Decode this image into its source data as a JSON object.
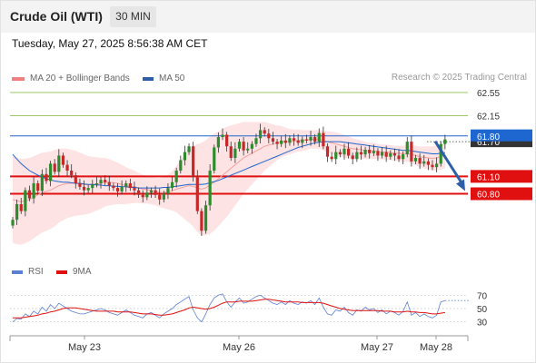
{
  "header": {
    "title": "Crude Oil (WTI)",
    "timeframe": "30 MIN"
  },
  "datetime": "Tuesday, May 27, 2025 8:56:38 AM CET",
  "legend": {
    "bollinger": {
      "label": "MA 20 + Bollinger Bands",
      "color": "#f08080"
    },
    "ma50": {
      "label": "MA 50",
      "color": "#2d5ea8"
    }
  },
  "credit": "Research © 2025 Trading Central",
  "rsi_legend": {
    "rsi": {
      "label": "RSI",
      "color": "#5b7fd1"
    },
    "ma9": {
      "label": "9MA",
      "color": "#e01010"
    }
  },
  "levels": [
    {
      "value": 62.55,
      "label": "62.55",
      "type": "resistance"
    },
    {
      "value": 62.15,
      "label": "62.15",
      "type": "resistance"
    },
    {
      "value": 61.8,
      "label": "61.80",
      "type": "pivot"
    },
    {
      "value": 61.1,
      "label": "61.10",
      "type": "support"
    },
    {
      "value": 60.8,
      "label": "60.80",
      "type": "support"
    }
  ],
  "current_price_tag": "61.70",
  "colors": {
    "resistance": "#8bc34a",
    "pivot": "#1e66d0",
    "support": "#e01010",
    "up": "#2e8b2e",
    "down": "#c62828",
    "arrow": "#2d5ea8"
  },
  "x_labels": [
    "May 23",
    "May 26",
    "May 27",
    "May 28"
  ],
  "rsi_ticks": [
    "70",
    "50",
    "30"
  ],
  "chart_data": {
    "type": "candlestick",
    "y_range": [
      59.6,
      62.8
    ],
    "levels": [
      62.55,
      62.15,
      61.8,
      61.1,
      60.8
    ],
    "close": [
      60.35,
      60.62,
      60.5,
      60.86,
      60.72,
      60.98,
      60.85,
      61.14,
      61.02,
      61.32,
      61.18,
      61.46,
      61.3,
      61.2,
      61.12,
      60.98,
      60.92,
      60.86,
      60.9,
      60.96,
      60.98,
      61.04,
      61.0,
      60.94,
      60.9,
      60.84,
      60.92,
      60.98,
      60.9,
      60.86,
      60.78,
      60.74,
      60.82,
      60.86,
      60.78,
      60.7,
      60.8,
      60.9,
      61.0,
      61.2,
      61.38,
      61.52,
      61.62,
      61.1,
      60.5,
      60.16,
      60.6,
      61.2,
      61.6,
      61.78,
      61.82,
      61.62,
      61.42,
      61.58,
      61.7,
      61.55,
      61.58,
      61.66,
      61.76,
      61.9,
      61.84,
      61.76,
      61.7,
      61.66,
      61.72,
      61.68,
      61.76,
      61.72,
      61.68,
      61.74,
      61.72,
      61.78,
      61.7,
      61.85,
      61.62,
      61.44,
      61.4,
      61.52,
      61.48,
      61.58,
      61.46,
      61.4,
      61.52,
      61.48,
      61.56,
      61.5,
      61.54,
      61.46,
      61.52,
      61.44,
      61.5,
      61.46,
      61.4,
      61.48,
      61.7,
      61.36,
      61.42,
      61.32,
      61.36,
      61.3,
      61.26,
      61.32,
      61.66,
      61.74
    ],
    "ma20": [
      60.7,
      60.68,
      60.66,
      60.68,
      60.7,
      60.74,
      60.78,
      60.82,
      60.84,
      60.86,
      60.9,
      60.94,
      60.96,
      60.98,
      60.98,
      60.98,
      60.97,
      60.96,
      60.95,
      60.96,
      60.97,
      60.98,
      61.0,
      61.0,
      60.99,
      60.98,
      60.96,
      60.94,
      60.93,
      60.92,
      60.9,
      60.88,
      60.87,
      60.86,
      60.84,
      60.82,
      60.82,
      60.83,
      60.85,
      60.88,
      60.9,
      60.92,
      60.94,
      60.93,
      60.9,
      60.88,
      60.9,
      60.95,
      61.0,
      61.06,
      61.12,
      61.18,
      61.24,
      61.3,
      61.36,
      61.42,
      61.46,
      61.5,
      61.54,
      61.58,
      61.62,
      61.64,
      61.66,
      61.68,
      61.7,
      61.7,
      61.7,
      61.71,
      61.72,
      61.72,
      61.73,
      61.74,
      61.74,
      61.74,
      61.72,
      61.7,
      61.68,
      61.66,
      61.64,
      61.62,
      61.6,
      61.58,
      61.57,
      61.56,
      61.55,
      61.54,
      61.54,
      61.53,
      61.52,
      61.52,
      61.51,
      61.5,
      61.5,
      61.49,
      61.5,
      61.48,
      61.46,
      61.44,
      61.43,
      61.42,
      61.41,
      61.42,
      61.44,
      61.46
    ],
    "ma50": [
      61.48,
      61.4,
      61.32,
      61.26,
      61.2,
      61.16,
      61.12,
      61.09,
      61.06,
      61.04,
      61.02,
      61.01,
      61.0,
      61.0,
      60.99,
      60.98,
      60.98,
      60.97,
      60.96,
      60.96,
      60.95,
      60.95,
      60.94,
      60.94,
      60.93,
      60.93,
      60.92,
      60.92,
      60.91,
      60.91,
      60.9,
      60.9,
      60.9,
      60.9,
      60.9,
      60.9,
      60.91,
      60.91,
      60.92,
      60.93,
      60.94,
      60.95,
      60.96,
      60.96,
      60.96,
      60.96,
      60.97,
      60.99,
      61.01,
      61.03,
      61.06,
      61.09,
      61.12,
      61.15,
      61.18,
      61.21,
      61.24,
      61.27,
      61.3,
      61.33,
      61.36,
      61.39,
      61.42,
      61.45,
      61.48,
      61.51,
      61.54,
      61.57,
      61.6,
      61.62,
      61.64,
      61.66,
      61.68,
      61.69,
      61.7,
      61.7,
      61.7,
      61.7,
      61.7,
      61.69,
      61.68,
      61.67,
      61.66,
      61.65,
      61.64,
      61.63,
      61.62,
      61.61,
      61.6,
      61.59,
      61.58,
      61.57,
      61.56,
      61.55,
      61.55,
      61.54,
      61.53,
      61.52,
      61.51,
      61.5,
      61.49,
      61.49,
      61.5,
      61.51
    ],
    "band_width": [
      0.75,
      0.75,
      0.74,
      0.73,
      0.72,
      0.71,
      0.7,
      0.69,
      0.68,
      0.67,
      0.66,
      0.64,
      0.62,
      0.6,
      0.58,
      0.56,
      0.54,
      0.52,
      0.5,
      0.48,
      0.46,
      0.44,
      0.42,
      0.4,
      0.38,
      0.36,
      0.34,
      0.32,
      0.3,
      0.28,
      0.26,
      0.25,
      0.24,
      0.24,
      0.24,
      0.25,
      0.27,
      0.3,
      0.34,
      0.4,
      0.48,
      0.56,
      0.64,
      0.7,
      0.76,
      0.8,
      0.82,
      0.84,
      0.84,
      0.82,
      0.8,
      0.78,
      0.74,
      0.7,
      0.66,
      0.62,
      0.58,
      0.54,
      0.5,
      0.46,
      0.42,
      0.38,
      0.34,
      0.3,
      0.27,
      0.24,
      0.22,
      0.2,
      0.19,
      0.18,
      0.17,
      0.16,
      0.16,
      0.16,
      0.17,
      0.18,
      0.19,
      0.2,
      0.2,
      0.2,
      0.19,
      0.18,
      0.17,
      0.16,
      0.15,
      0.14,
      0.14,
      0.13,
      0.13,
      0.13,
      0.13,
      0.13,
      0.13,
      0.14,
      0.15,
      0.16,
      0.17,
      0.18,
      0.19,
      0.2,
      0.21,
      0.22,
      0.22,
      0.22
    ],
    "rsi": [
      30,
      35,
      34,
      42,
      38,
      46,
      42,
      52,
      46,
      56,
      50,
      58,
      54,
      50,
      46,
      44,
      42,
      42,
      44,
      46,
      48,
      50,
      48,
      44,
      42,
      40,
      44,
      48,
      44,
      40,
      38,
      36,
      42,
      44,
      40,
      36,
      42,
      46,
      50,
      56,
      60,
      64,
      68,
      48,
      36,
      30,
      42,
      56,
      66,
      70,
      72,
      60,
      52,
      60,
      66,
      58,
      60,
      64,
      68,
      70,
      66,
      62,
      58,
      56,
      60,
      56,
      62,
      58,
      56,
      60,
      58,
      62,
      56,
      66,
      52,
      42,
      40,
      48,
      46,
      52,
      44,
      40,
      48,
      46,
      52,
      48,
      50,
      44,
      48,
      42,
      46,
      44,
      40,
      46,
      60,
      40,
      44,
      38,
      42,
      38,
      36,
      40,
      60,
      62
    ],
    "rsi_ma": [
      36,
      36,
      36,
      37,
      38,
      39,
      40,
      42,
      43,
      45,
      46,
      48,
      50,
      51,
      51,
      51,
      50,
      49,
      48,
      47,
      46,
      46,
      46,
      46,
      46,
      45,
      45,
      45,
      45,
      44,
      43,
      42,
      42,
      42,
      41,
      40,
      40,
      41,
      42,
      44,
      46,
      48,
      51,
      52,
      51,
      50,
      49,
      50,
      52,
      55,
      58,
      60,
      60,
      60,
      61,
      61,
      61,
      61,
      62,
      63,
      64,
      64,
      63,
      62,
      61,
      60,
      60,
      60,
      60,
      59,
      59,
      59,
      59,
      59,
      58,
      56,
      54,
      52,
      50,
      49,
      48,
      47,
      47,
      47,
      47,
      47,
      47,
      47,
      46,
      46,
      46,
      45,
      45,
      45,
      46,
      45,
      45,
      44,
      44,
      43,
      42,
      42,
      43,
      44
    ],
    "x_labels": [
      "May 23",
      "May 26",
      "May 27",
      "May 28"
    ],
    "rsi_range": [
      20,
      80
    ],
    "rsi_ticks": [
      70,
      50,
      30
    ],
    "current_price": 61.7,
    "forecast_arrow": {
      "from": 61.8,
      "to": 60.8
    },
    "legend_placement": "top-left"
  }
}
